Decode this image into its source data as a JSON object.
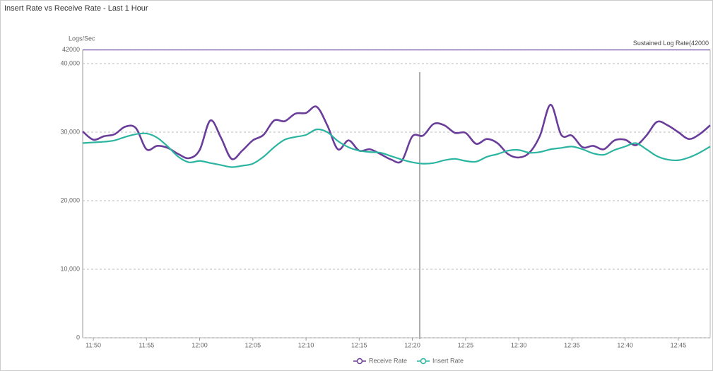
{
  "chart_data": {
    "type": "line",
    "title": "Insert Rate vs Receive Rate - Last 1 Hour",
    "y_label": "Logs/Sec",
    "threshold": {
      "label": "Sustained Log Rate(42000",
      "value": 42000,
      "color": "#7a5fb0"
    },
    "x": [
      "11:49",
      "11:50",
      "11:51",
      "11:52",
      "11:53",
      "11:54",
      "11:55",
      "11:56",
      "11:57",
      "11:58",
      "11:59",
      "12:00",
      "12:01",
      "12:02",
      "12:03",
      "12:04",
      "12:05",
      "12:06",
      "12:07",
      "12:08",
      "12:09",
      "12:10",
      "12:11",
      "12:12",
      "12:13",
      "12:14",
      "12:15",
      "12:16",
      "12:17",
      "12:18",
      "12:19",
      "12:20",
      "12:21",
      "12:22",
      "12:23",
      "12:24",
      "12:25",
      "12:26",
      "12:27",
      "12:28",
      "12:29",
      "12:30",
      "12:31",
      "12:32",
      "12:33",
      "12:34",
      "12:35",
      "12:36",
      "12:37",
      "12:38",
      "12:39",
      "12:40",
      "12:41",
      "12:42",
      "12:43",
      "12:44",
      "12:45",
      "12:46",
      "12:47",
      "12:48"
    ],
    "series": [
      {
        "name": "Receive Rate",
        "color": "#6a3d9a",
        "values": [
          30100,
          28900,
          29400,
          29700,
          30800,
          30600,
          27500,
          28000,
          27700,
          26800,
          26200,
          27400,
          31700,
          29200,
          26100,
          27300,
          28800,
          29600,
          31700,
          31600,
          32700,
          32800,
          33700,
          31000,
          27500,
          28800,
          27300,
          27500,
          26800,
          26000,
          25800,
          29400,
          29500,
          31200,
          31000,
          29900,
          29900,
          28300,
          29000,
          28400,
          26800,
          26300,
          27000,
          29500,
          34000,
          29600,
          29500,
          27800,
          28000,
          27500,
          28800,
          28900,
          28100,
          29500,
          31500,
          31000,
          30000,
          29000,
          29700,
          31000
        ]
      },
      {
        "name": "Insert Rate",
        "color": "#2bb5a0",
        "values": [
          28400,
          28500,
          28600,
          28800,
          29300,
          29700,
          29800,
          29200,
          27900,
          26400,
          25600,
          25800,
          25500,
          25200,
          24900,
          25100,
          25400,
          26400,
          27800,
          28900,
          29300,
          29600,
          30400,
          30000,
          28700,
          27800,
          27300,
          27100,
          27000,
          26500,
          26000,
          25600,
          25400,
          25500,
          25900,
          26100,
          25800,
          25700,
          26400,
          26800,
          27300,
          27400,
          27000,
          27100,
          27500,
          27700,
          27900,
          27500,
          26900,
          26700,
          27400,
          27900,
          28400,
          27500,
          26500,
          26000,
          25900,
          26300,
          27000,
          27900
        ]
      }
    ],
    "xlim": [
      "11:49",
      "12:48"
    ],
    "xticks": [
      "11:50",
      "11:55",
      "12:00",
      "12:05",
      "12:10",
      "12:15",
      "12:20",
      "12:25",
      "12:30",
      "12:35",
      "12:40",
      "12:45"
    ],
    "ylim": [
      0,
      42000
    ],
    "yticks": [
      0,
      {
        "value": 10000,
        "label": "10,000"
      },
      {
        "value": 20000,
        "label": "20,000"
      },
      {
        "value": 30000,
        "label": "30,000"
      },
      {
        "value": 40000,
        "label": "40,000"
      },
      42000
    ],
    "grid": true,
    "legend": "bottom"
  }
}
